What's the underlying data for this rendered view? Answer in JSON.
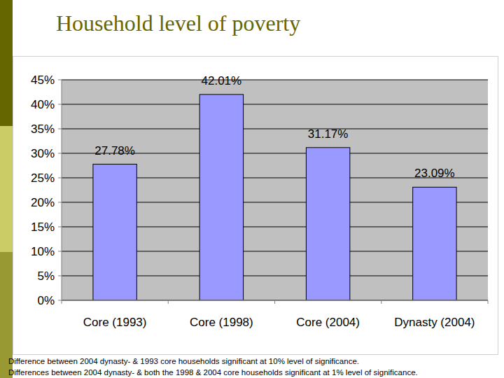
{
  "chart_data": {
    "type": "bar",
    "title": "Household level of poverty",
    "categories": [
      "Core (1993)",
      "Core (1998)",
      "Core (2004)",
      "Dynasty (2004)"
    ],
    "values": [
      27.78,
      42.01,
      31.17,
      23.09
    ],
    "value_labels": [
      "27.78%",
      "42.01%",
      "31.17%",
      "23.09%"
    ],
    "color": "#9999ff",
    "ylim": [
      0,
      45
    ],
    "yticks": [
      {
        "value": 0,
        "label": "0%"
      },
      {
        "value": 5,
        "label": "5%"
      },
      {
        "value": 10,
        "label": "10%"
      },
      {
        "value": 15,
        "label": "15%"
      },
      {
        "value": 20,
        "label": "20%"
      },
      {
        "value": 25,
        "label": "25%"
      },
      {
        "value": 30,
        "label": "30%"
      },
      {
        "value": 35,
        "label": "35%"
      },
      {
        "value": 40,
        "label": "40%"
      },
      {
        "value": 45,
        "label": "45%"
      }
    ],
    "grid": true,
    "data_labels": true,
    "annotations": [
      "Difference between 2004 dynasty- & 1993 core households significant at 10% level of significance.",
      "Differences between 2004 dynasty- & both the 1998 & 2004 core households significant at 1% level of significance."
    ]
  }
}
